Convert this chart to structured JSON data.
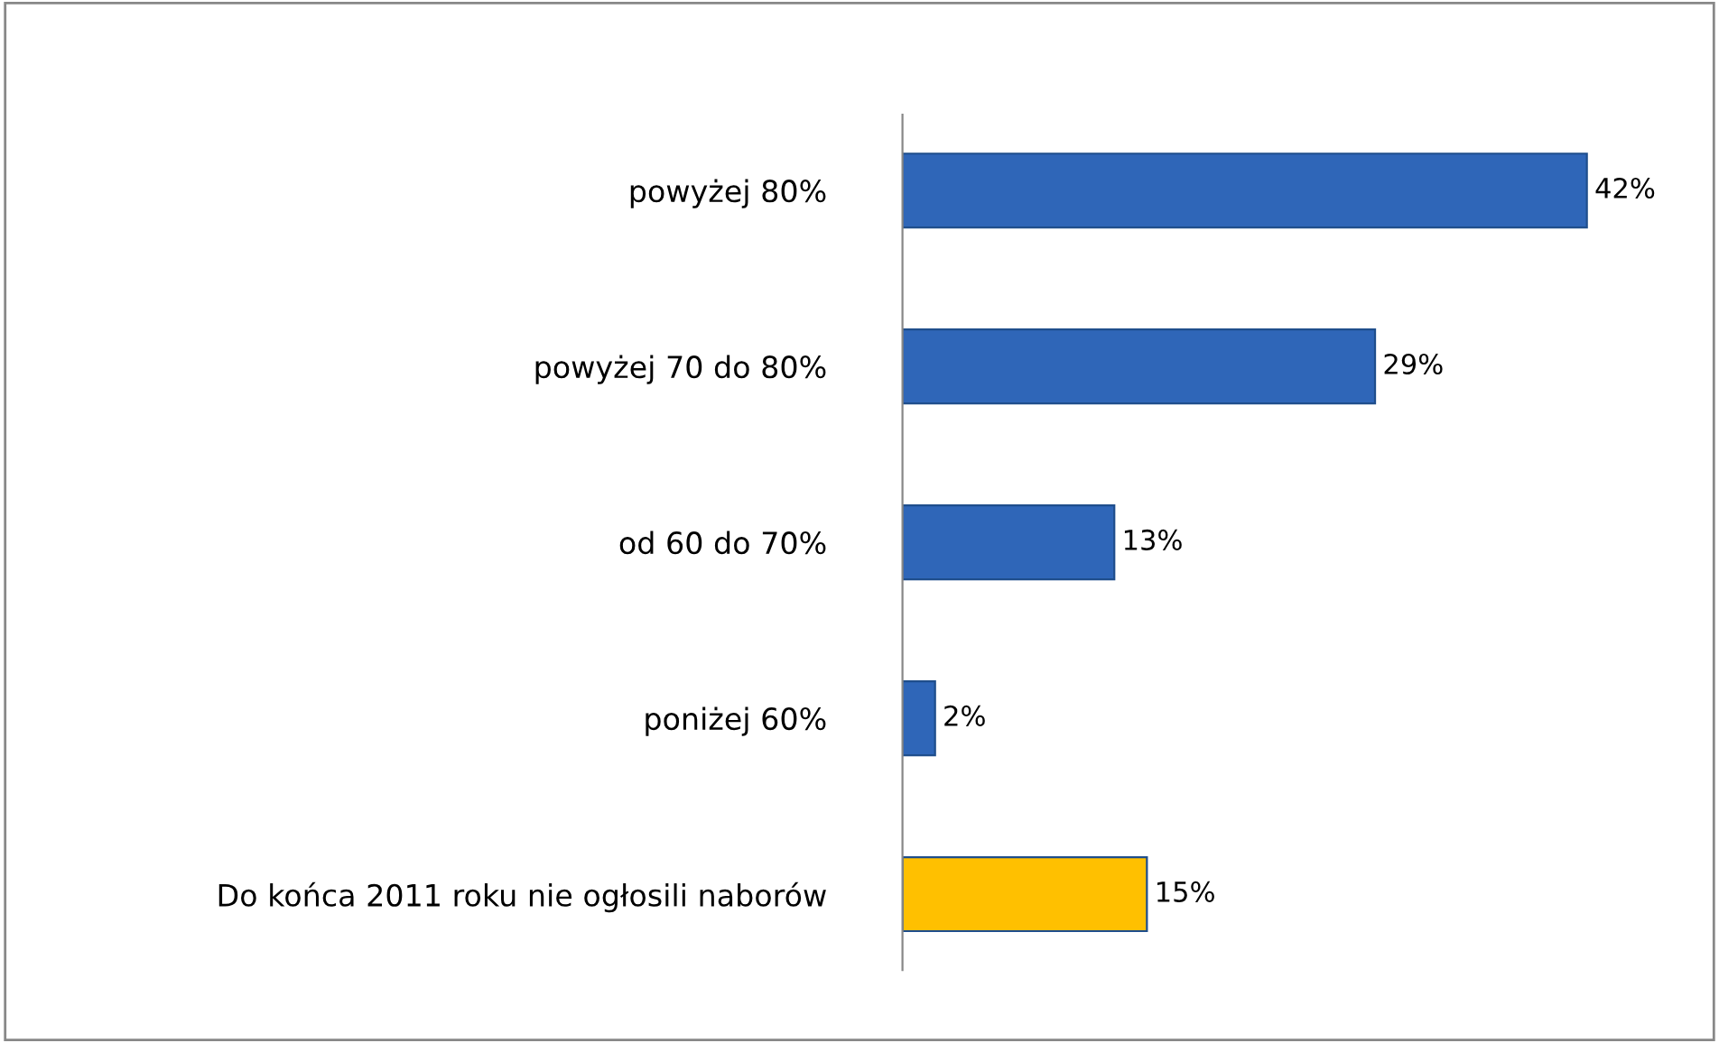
{
  "chart_data": {
    "type": "bar",
    "orientation": "horizontal",
    "categories": [
      "powyżej 80%",
      "powyżej 70 do 80%",
      "od 60 do 70%",
      "poniżej 60%",
      "Do końca 2011 roku nie ogłosili naborów"
    ],
    "values": [
      42,
      29,
      13,
      2,
      15
    ],
    "colors": [
      "#2f66b8",
      "#2f66b8",
      "#2f66b8",
      "#2f66b8",
      "#ffc000"
    ],
    "value_labels": [
      "42%",
      "29%",
      "13%",
      "2%",
      "15%"
    ],
    "grid": false,
    "legend": false
  }
}
